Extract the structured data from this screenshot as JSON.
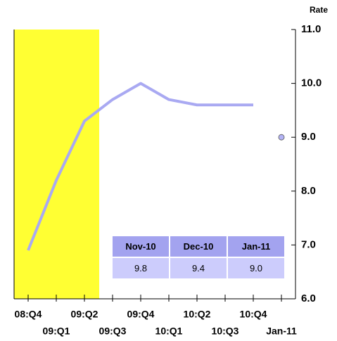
{
  "chart_data": {
    "type": "line",
    "y_axis_label": "Rate",
    "categories": [
      "08:Q4",
      "09:Q1",
      "09:Q2",
      "09:Q3",
      "09:Q4",
      "10:Q1",
      "10:Q2",
      "10:Q3",
      "10:Q4",
      "Jan-11"
    ],
    "series": [
      {
        "color": "#a9a9f2",
        "style": "line",
        "values": [
          6.9,
          8.2,
          9.3,
          9.7,
          10.0,
          9.7,
          9.6,
          9.6,
          9.6,
          null
        ]
      },
      {
        "color": "#b3b3f5",
        "style": "dots",
        "values": [
          null,
          null,
          null,
          null,
          null,
          null,
          null,
          null,
          null,
          9.0
        ]
      }
    ],
    "ylim": [
      6,
      11
    ],
    "yticks": [
      {
        "value": 6,
        "label": "6.0"
      },
      {
        "value": 7,
        "label": "7.0"
      },
      {
        "value": 8,
        "label": "8.0"
      },
      {
        "value": 9,
        "label": "9.0"
      },
      {
        "value": 10,
        "label": "10.0"
      },
      {
        "value": 11,
        "label": "11.0"
      }
    ],
    "table": {
      "headers": [
        "Nov-10",
        "Dec-10",
        "Jan-11"
      ],
      "values": [
        "9.8",
        "9.4",
        "9.0"
      ]
    }
  }
}
